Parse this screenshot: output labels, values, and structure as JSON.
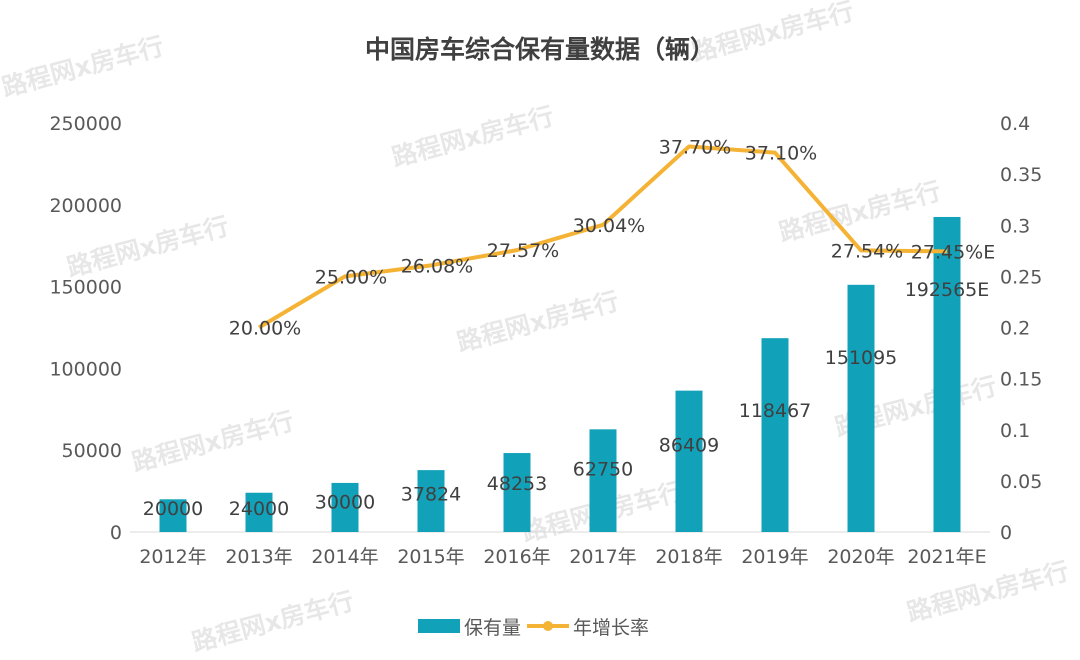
{
  "chart_data": {
    "type": "bar+line",
    "title": "中国房车综合保有量数据（辆）",
    "categories": [
      "2012年",
      "2013年",
      "2014年",
      "2015年",
      "2016年",
      "2017年",
      "2018年",
      "2019年",
      "2020年",
      "2021年E"
    ],
    "bar_series": {
      "name": "保有量",
      "color": "#11A2BA",
      "values": [
        20000,
        24000,
        30000,
        37824,
        48253,
        62750,
        86409,
        118467,
        151095,
        192565
      ],
      "labels": [
        "20000",
        "24000",
        "30000",
        "37824",
        "48253",
        "62750",
        "86409",
        "118467",
        "151095",
        "192565E"
      ]
    },
    "line_series": {
      "name": "年增长率",
      "color": "#F5B335",
      "values": [
        null,
        0.2,
        0.25,
        0.2608,
        0.2757,
        0.3004,
        0.377,
        0.371,
        0.2754,
        0.2745
      ],
      "labels": [
        "",
        "20.00%",
        "25.00%",
        "26.08%",
        "27.57%",
        "30.04%",
        "37.70%",
        "37.10%",
        "27.54%",
        "27.45%E"
      ]
    },
    "y_left": {
      "min": 0,
      "max": 250000,
      "ticks": [
        "0",
        "50000",
        "100000",
        "150000",
        "200000",
        "250000"
      ]
    },
    "y_right": {
      "min": 0,
      "max": 0.4,
      "ticks": [
        "0",
        "0.05",
        "0.1",
        "0.15",
        "0.2",
        "0.25",
        "0.3",
        "0.35",
        "0.4"
      ]
    },
    "legend_position": "bottom",
    "grid": false
  },
  "watermark": {
    "text": "路程网x房车行"
  }
}
